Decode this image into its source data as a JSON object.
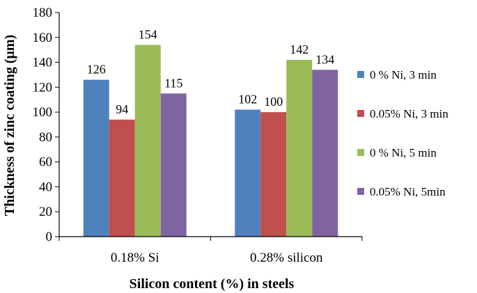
{
  "chart_data": {
    "type": "bar",
    "title": "",
    "xlabel": "Silicon content (%) in steels",
    "ylabel": "Thickness of  zinc coating (µm)",
    "categories": [
      "0.18% Si",
      "0.28% silicon"
    ],
    "ylim": [
      0,
      180
    ],
    "ytick_step": 20,
    "grid": false,
    "legend_position": "right",
    "series": [
      {
        "name": "0 % Ni, 3 min",
        "color": "#4f81bd",
        "values": [
          126,
          102
        ]
      },
      {
        "name": "0.05% Ni, 3 min",
        "color": "#c0504d",
        "values": [
          94,
          100
        ]
      },
      {
        "name": "0 % Ni, 5 min",
        "color": "#9bbb59",
        "values": [
          154,
          142
        ]
      },
      {
        "name": "0.05% Ni, 5min",
        "color": "#8064a2",
        "values": [
          115,
          134
        ]
      }
    ]
  }
}
